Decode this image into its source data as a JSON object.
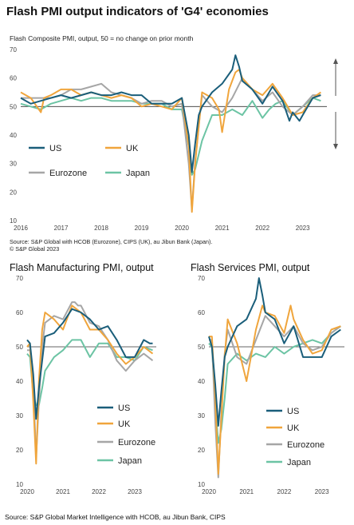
{
  "title": "Flash PMI output indicators of 'G4' economies",
  "top_subtitle": "Flash Composite PMI, output, 50 =  no change on prior month",
  "top_source": "Source: S&P Global with HCOB (Eurozone), CIPS (UK), au Jibun Bank (Japan).",
  "top_copyright": "© S&P Global 2023",
  "mfg_title": "Flash Manufacturing PMI, output",
  "svc_title": "Flash Services PMI, output",
  "footer": "Source: S&P Global Market Intelligence with HCOB, au Jibun Bank, CIPS",
  "colors": {
    "US": "#1a5e7a",
    "UK": "#f0a53c",
    "Eurozone": "#a6a6a6",
    "Japan": "#6cc4a4"
  },
  "chart_data": [
    {
      "type": "line",
      "ylim": [
        10,
        70
      ],
      "yticks": [
        10,
        20,
        30,
        40,
        50,
        60,
        70
      ],
      "xlim": [
        2016,
        2023.6
      ],
      "xticks": [
        "2016",
        "2017",
        "2018",
        "2019",
        "2020",
        "2021",
        "2022",
        "2023"
      ],
      "reference_line": 50,
      "legend": [
        "US",
        "UK",
        "Eurozone",
        "Japan"
      ],
      "series": [
        {
          "name": "US",
          "x": [
            2016,
            2016.25,
            2016.5,
            2016.75,
            2017,
            2017.25,
            2017.5,
            2017.75,
            2018,
            2018.25,
            2018.5,
            2018.75,
            2019,
            2019.25,
            2019.5,
            2019.75,
            2020,
            2020.17,
            2020.25,
            2020.33,
            2020.42,
            2020.5,
            2020.75,
            2021,
            2021.25,
            2021.33,
            2021.42,
            2021.5,
            2021.75,
            2022,
            2022.25,
            2022.5,
            2022.67,
            2022.75,
            2022.92,
            2023,
            2023.25,
            2023.45
          ],
          "y": [
            53,
            51,
            52,
            53,
            54,
            53,
            54,
            55,
            54,
            54,
            55,
            54,
            54,
            51,
            51,
            51,
            53,
            40,
            27,
            37,
            47,
            50,
            55,
            58,
            63,
            68,
            64,
            59,
            56,
            51,
            57,
            52,
            45,
            48,
            45,
            47,
            53,
            54
          ]
        },
        {
          "name": "UK",
          "x": [
            2016,
            2016.25,
            2016.5,
            2016.58,
            2016.75,
            2017,
            2017.25,
            2017.5,
            2017.75,
            2018,
            2018.25,
            2018.5,
            2018.75,
            2019,
            2019.25,
            2019.5,
            2019.75,
            2020,
            2020.17,
            2020.25,
            2020.33,
            2020.5,
            2020.75,
            2020.92,
            2021,
            2021.17,
            2021.33,
            2021.42,
            2021.5,
            2021.75,
            2022,
            2022.25,
            2022.5,
            2022.75,
            2023,
            2023.25,
            2023.45
          ],
          "y": [
            55,
            53,
            48,
            53,
            54,
            56,
            56,
            54,
            55,
            54,
            53,
            54,
            53,
            50,
            51,
            50,
            49,
            53,
            36,
            13,
            30,
            55,
            53,
            49,
            41,
            56,
            62,
            63,
            60,
            56,
            54,
            58,
            53,
            47,
            48,
            53,
            55
          ]
        },
        {
          "name": "Eurozone",
          "x": [
            2016,
            2016.25,
            2016.5,
            2016.75,
            2017,
            2017.25,
            2017.5,
            2017.75,
            2018,
            2018.25,
            2018.5,
            2018.75,
            2019,
            2019.25,
            2019.5,
            2019.75,
            2020,
            2020.17,
            2020.25,
            2020.33,
            2020.5,
            2020.75,
            2021,
            2021.25,
            2021.5,
            2021.75,
            2022,
            2022.25,
            2022.5,
            2022.75,
            2023,
            2023.25,
            2023.45
          ],
          "y": [
            53,
            53,
            53,
            53,
            54,
            56,
            56,
            57,
            58,
            55,
            54,
            53,
            51,
            52,
            52,
            50,
            51,
            30,
            14,
            31,
            54,
            50,
            48,
            53,
            60,
            56,
            52,
            55,
            50,
            47,
            50,
            54,
            54
          ]
        },
        {
          "name": "Japan",
          "x": [
            2016,
            2016.25,
            2016.5,
            2016.75,
            2017,
            2017.25,
            2017.5,
            2017.75,
            2018,
            2018.25,
            2018.5,
            2018.75,
            2019,
            2019.25,
            2019.5,
            2019.75,
            2020,
            2020.17,
            2020.25,
            2020.33,
            2020.5,
            2020.75,
            2021,
            2021.25,
            2021.5,
            2021.75,
            2022,
            2022.17,
            2022.33,
            2022.5,
            2022.75,
            2023,
            2023.25,
            2023.45
          ],
          "y": [
            51,
            50,
            49,
            51,
            52,
            53,
            52,
            53,
            53,
            52,
            52,
            52,
            51,
            51,
            51,
            49,
            49,
            36,
            26,
            28,
            38,
            47,
            47,
            49,
            47,
            52,
            46,
            49,
            51,
            52,
            47,
            50,
            53,
            52
          ]
        }
      ],
      "annotation": "arrows"
    },
    {
      "type": "line",
      "ylim": [
        10,
        70
      ],
      "yticks": [
        10,
        20,
        30,
        40,
        50,
        60,
        70
      ],
      "xlim": [
        2020,
        2023.6
      ],
      "xticks": [
        "2020",
        "2021",
        "2022",
        "2023"
      ],
      "reference_line": 50,
      "legend": [
        "US",
        "UK",
        "Eurozone",
        "Japan"
      ],
      "series": [
        {
          "name": "US",
          "x": [
            2020,
            2020.08,
            2020.17,
            2020.25,
            2020.33,
            2020.42,
            2020.5,
            2020.75,
            2021,
            2021.25,
            2021.5,
            2021.75,
            2022,
            2022.25,
            2022.5,
            2022.75,
            2023,
            2023.25,
            2023.42,
            2023.5
          ],
          "y": [
            52,
            51,
            42,
            29,
            38,
            46,
            53,
            54,
            57,
            61,
            60,
            58,
            55,
            56,
            52,
            47,
            47,
            52,
            51,
            51
          ]
        },
        {
          "name": "UK",
          "x": [
            2020,
            2020.08,
            2020.17,
            2020.25,
            2020.33,
            2020.42,
            2020.5,
            2020.75,
            2021,
            2021.25,
            2021.5,
            2021.75,
            2022,
            2022.25,
            2022.5,
            2022.75,
            2023,
            2023.25,
            2023.5
          ],
          "y": [
            50,
            51,
            34,
            16,
            40,
            55,
            60,
            58,
            55,
            62,
            60,
            55,
            55,
            52,
            48,
            45,
            47,
            50,
            48
          ]
        },
        {
          "name": "Eurozone",
          "x": [
            2020,
            2020.08,
            2020.17,
            2020.25,
            2020.33,
            2020.42,
            2020.5,
            2020.75,
            2021,
            2021.25,
            2021.33,
            2021.42,
            2021.5,
            2021.75,
            2022,
            2022.25,
            2022.5,
            2022.75,
            2023,
            2023.25,
            2023.5
          ],
          "y": [
            49,
            49,
            39,
            18,
            34,
            50,
            57,
            59,
            58,
            63,
            63,
            62,
            62,
            57,
            56,
            52,
            46,
            43,
            46,
            48,
            46
          ]
        },
        {
          "name": "Japan",
          "x": [
            2020,
            2020.08,
            2020.17,
            2020.25,
            2020.33,
            2020.42,
            2020.5,
            2020.75,
            2021,
            2021.25,
            2021.5,
            2021.75,
            2022,
            2022.25,
            2022.5,
            2022.75,
            2023,
            2023.25,
            2023.5
          ],
          "y": [
            48,
            47,
            36,
            33,
            33,
            38,
            43,
            47,
            49,
            52,
            52,
            47,
            51,
            51,
            47,
            47,
            46,
            50,
            49
          ]
        }
      ]
    },
    {
      "type": "line",
      "ylim": [
        10,
        70
      ],
      "yticks": [
        10,
        20,
        30,
        40,
        50,
        60,
        70
      ],
      "xlim": [
        2020,
        2023.6
      ],
      "xticks": [
        "2020",
        "2021",
        "2022",
        "2023"
      ],
      "reference_line": 50,
      "legend": [
        "US",
        "UK",
        "Eurozone",
        "Japan"
      ],
      "series": [
        {
          "name": "US",
          "x": [
            2020,
            2020.08,
            2020.17,
            2020.25,
            2020.33,
            2020.42,
            2020.5,
            2020.75,
            2021,
            2021.25,
            2021.33,
            2021.42,
            2021.5,
            2021.75,
            2022,
            2022.25,
            2022.5,
            2022.75,
            2023,
            2023.25,
            2023.5
          ],
          "y": [
            53,
            50,
            39,
            27,
            37,
            47,
            50,
            56,
            58,
            64,
            70,
            65,
            60,
            58,
            51,
            56,
            47,
            47,
            47,
            53,
            55
          ]
        },
        {
          "name": "UK",
          "x": [
            2020,
            2020.08,
            2020.17,
            2020.25,
            2020.33,
            2020.42,
            2020.5,
            2020.75,
            2021,
            2021.25,
            2021.42,
            2021.5,
            2021.75,
            2022,
            2022.17,
            2022.25,
            2022.5,
            2022.75,
            2023,
            2023.25,
            2023.5
          ],
          "y": [
            53,
            53,
            35,
            13,
            29,
            47,
            58,
            51,
            40,
            55,
            62,
            60,
            59,
            54,
            62,
            58,
            52,
            48,
            49,
            55,
            56
          ]
        },
        {
          "name": "Eurozone",
          "x": [
            2020,
            2020.08,
            2020.17,
            2020.25,
            2020.33,
            2020.42,
            2020.5,
            2020.75,
            2021,
            2021.25,
            2021.5,
            2021.75,
            2022,
            2022.25,
            2022.5,
            2022.75,
            2023,
            2023.25,
            2023.5
          ],
          "y": [
            52,
            52,
            28,
            12,
            31,
            48,
            55,
            47,
            45,
            52,
            59,
            56,
            53,
            56,
            51,
            49,
            50,
            54,
            56
          ]
        },
        {
          "name": "Japan",
          "x": [
            2020,
            2020.08,
            2020.17,
            2020.25,
            2020.33,
            2020.42,
            2020.5,
            2020.75,
            2021,
            2021.25,
            2021.5,
            2021.75,
            2022,
            2022.25,
            2022.5,
            2022.75,
            2023,
            2023.25,
            2023.5
          ],
          "y": [
            51,
            50,
            33,
            22,
            26,
            35,
            45,
            48,
            46,
            48,
            47,
            50,
            48,
            50,
            51,
            52,
            51,
            54,
            56
          ]
        }
      ]
    }
  ]
}
